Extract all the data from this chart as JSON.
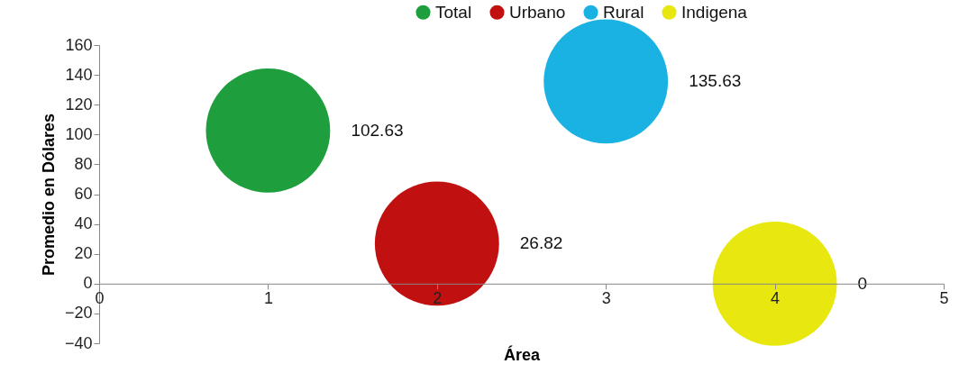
{
  "chart_data": {
    "type": "bubble",
    "xlabel": "Área",
    "ylabel": "Promedio en Dólares",
    "xlim": [
      0,
      5
    ],
    "xticks": [
      0,
      1,
      2,
      3,
      4,
      5
    ],
    "ylim": [
      -40,
      160
    ],
    "yticks": [
      -40,
      -20,
      0,
      20,
      40,
      60,
      80,
      100,
      120,
      140,
      160
    ],
    "legend": "top",
    "data_labels": true,
    "series": [
      {
        "name": "Total",
        "color": "#1e9e3c",
        "x": [
          1
        ],
        "values": [
          102.63
        ],
        "sizes": [
          1
        ]
      },
      {
        "name": "Urbano",
        "color": "#c01010",
        "x": [
          2
        ],
        "values": [
          26.82
        ],
        "sizes": [
          1
        ]
      },
      {
        "name": "Rural",
        "color": "#1ab2e2",
        "x": [
          3
        ],
        "values": [
          135.63
        ],
        "sizes": [
          1
        ]
      },
      {
        "name": "Indigena",
        "color": "#e8e810",
        "x": [
          4
        ],
        "values": [
          0
        ],
        "sizes": [
          1
        ]
      }
    ]
  }
}
